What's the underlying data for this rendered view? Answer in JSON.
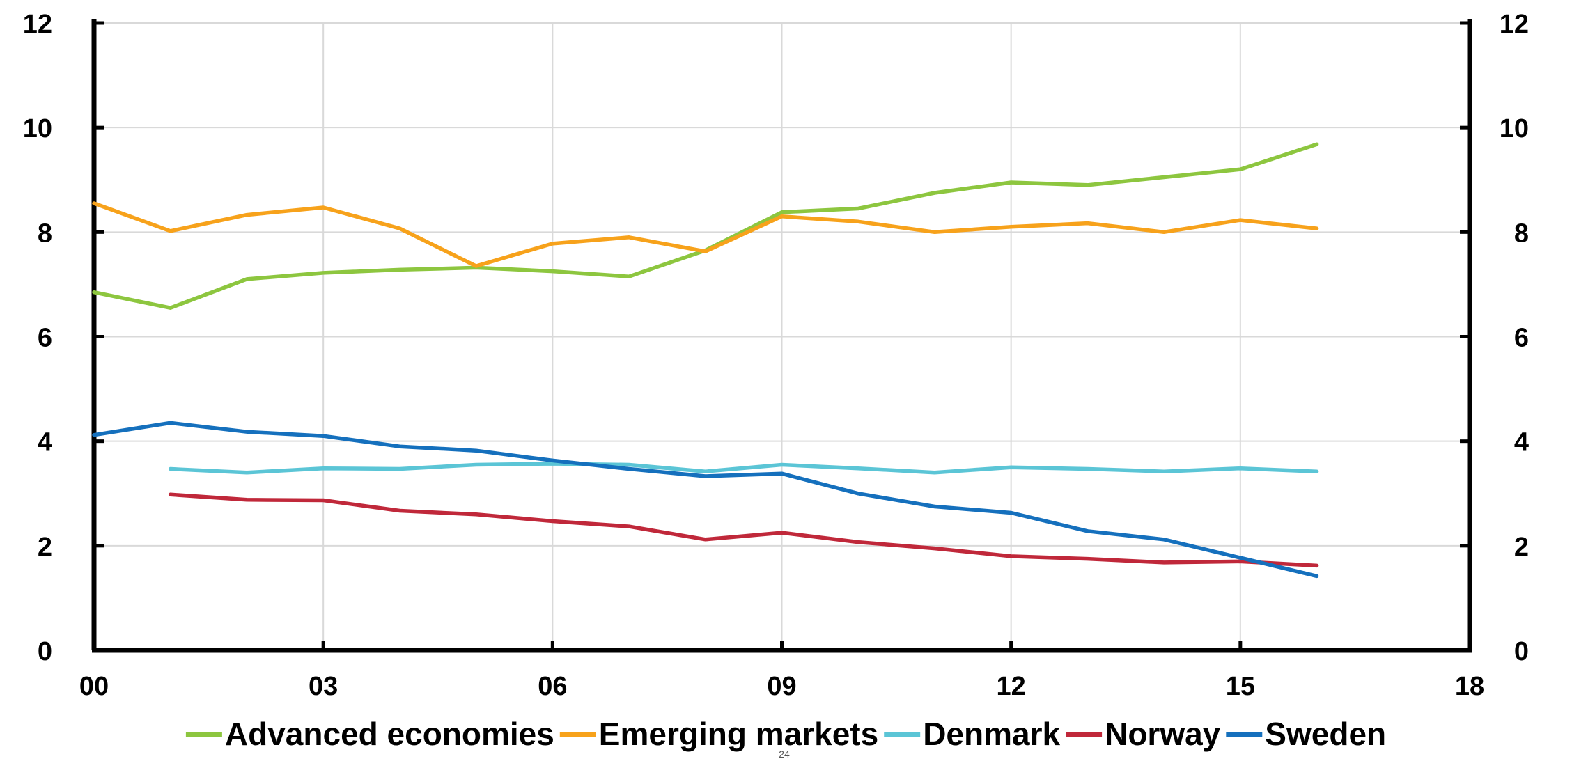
{
  "page_number": "24",
  "colors": {
    "grid": "#d9d9d9",
    "axis": "#000000",
    "background": "#ffffff"
  },
  "chart_data": {
    "type": "line",
    "title": "",
    "xlabel": "",
    "ylabel": "",
    "x": [
      2000,
      2001,
      2002,
      2003,
      2004,
      2005,
      2006,
      2007,
      2008,
      2009,
      2010,
      2011,
      2012,
      2013,
      2014,
      2015,
      2016
    ],
    "xlim": [
      2000,
      2018
    ],
    "ylim": [
      0,
      12
    ],
    "grid": true,
    "secondary_y_axis": true,
    "legend_position": "bottom",
    "x_ticks": [
      {
        "value": 2000,
        "label": "00"
      },
      {
        "value": 2003,
        "label": "03"
      },
      {
        "value": 2006,
        "label": "06"
      },
      {
        "value": 2009,
        "label": "09"
      },
      {
        "value": 2012,
        "label": "12"
      },
      {
        "value": 2015,
        "label": "15"
      },
      {
        "value": 2018,
        "label": "18"
      }
    ],
    "y_ticks": [
      {
        "value": 0,
        "label": "0"
      },
      {
        "value": 2,
        "label": "2"
      },
      {
        "value": 4,
        "label": "4"
      },
      {
        "value": 6,
        "label": "6"
      },
      {
        "value": 8,
        "label": "8"
      },
      {
        "value": 10,
        "label": "10"
      },
      {
        "value": 12,
        "label": "12"
      }
    ],
    "series": [
      {
        "name": "Advanced economies",
        "color": "#8dc63f",
        "values": [
          6.85,
          6.55,
          7.1,
          7.22,
          7.28,
          7.32,
          7.25,
          7.15,
          7.65,
          8.38,
          8.45,
          8.75,
          8.95,
          8.9,
          9.05,
          9.2,
          9.68
        ]
      },
      {
        "name": "Emerging markets",
        "color": "#f7a21b",
        "values": [
          8.55,
          8.02,
          8.33,
          8.47,
          8.07,
          7.35,
          7.78,
          7.9,
          7.63,
          8.3,
          8.2,
          8.0,
          8.1,
          8.17,
          8.0,
          8.23,
          8.07
        ]
      },
      {
        "name": "Denmark",
        "color": "#5bc5d6",
        "values": [
          null,
          3.47,
          3.4,
          3.48,
          3.47,
          3.55,
          3.57,
          3.55,
          3.42,
          3.55,
          3.48,
          3.4,
          3.5,
          3.47,
          3.42,
          3.48,
          3.42
        ]
      },
      {
        "name": "Norway",
        "color": "#c0283a",
        "values": [
          null,
          2.98,
          2.88,
          2.87,
          2.67,
          2.6,
          2.47,
          2.37,
          2.12,
          2.25,
          2.07,
          1.95,
          1.8,
          1.75,
          1.68,
          1.7,
          1.62
        ]
      },
      {
        "name": "Sweden",
        "color": "#1570bd",
        "values": [
          4.12,
          4.35,
          4.18,
          4.1,
          3.9,
          3.82,
          3.63,
          3.47,
          3.33,
          3.38,
          3.0,
          2.75,
          2.63,
          2.28,
          2.12,
          1.77,
          1.42
        ]
      }
    ]
  }
}
